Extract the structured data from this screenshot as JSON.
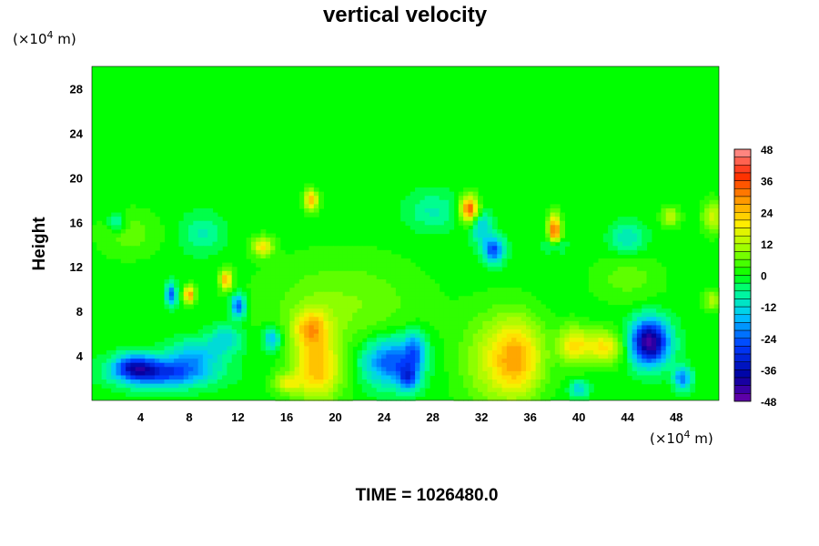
{
  "chart_data": {
    "type": "heatmap",
    "title": "vertical velocity",
    "ylabel": "Height",
    "xlabel": "",
    "x_unit_prefix": "(×10",
    "x_unit_exp": "4",
    "x_unit_suffix": " m)",
    "y_unit_prefix": "(×10",
    "y_unit_exp": "4",
    "y_unit_suffix": " m)",
    "xlim": [
      0,
      51.5
    ],
    "ylim": [
      0,
      30
    ],
    "x_ticks": [
      "4",
      "8",
      "12",
      "16",
      "20",
      "24",
      "28",
      "32",
      "36",
      "40",
      "44",
      "48"
    ],
    "x_tick_values": [
      4,
      8,
      12,
      16,
      20,
      24,
      28,
      32,
      36,
      40,
      44,
      48
    ],
    "y_ticks": [
      "4",
      "8",
      "12",
      "16",
      "20",
      "24",
      "28"
    ],
    "y_tick_values": [
      4,
      8,
      12,
      16,
      20,
      24,
      28
    ],
    "colorbar": {
      "ticks": [
        "48",
        "36",
        "24",
        "12",
        "0",
        "-12",
        "-24",
        "-36",
        "-48"
      ],
      "tick_values": [
        48,
        36,
        24,
        12,
        0,
        -12,
        -24,
        -36,
        -48
      ],
      "range": [
        -48,
        48
      ],
      "levels": 32
    },
    "background_value": 0,
    "features": [
      {
        "x": 18.5,
        "y": 2.8,
        "sx": 1.4,
        "sy": 2.0,
        "v": 24
      },
      {
        "x": 18.0,
        "y": 6.5,
        "sx": 1.0,
        "sy": 1.2,
        "v": 20
      },
      {
        "x": 16.0,
        "y": 1.5,
        "sx": 0.8,
        "sy": 0.6,
        "v": 14
      },
      {
        "x": 35.0,
        "y": 3.8,
        "sx": 1.5,
        "sy": 2.5,
        "v": 24
      },
      {
        "x": 32.5,
        "y": 3.5,
        "sx": 1.8,
        "sy": 3.0,
        "v": 10
      },
      {
        "x": 39.5,
        "y": 5.0,
        "sx": 0.9,
        "sy": 1.2,
        "v": 18
      },
      {
        "x": 42.0,
        "y": 4.8,
        "sx": 1.2,
        "sy": 1.0,
        "v": 20
      },
      {
        "x": 31.0,
        "y": 17.2,
        "sx": 0.5,
        "sy": 0.8,
        "v": 36
      },
      {
        "x": 38.0,
        "y": 15.2,
        "sx": 0.35,
        "sy": 1.0,
        "v": 36
      },
      {
        "x": 18.0,
        "y": 18.0,
        "sx": 0.4,
        "sy": 0.6,
        "v": 26
      },
      {
        "x": 14.0,
        "y": 13.8,
        "sx": 0.6,
        "sy": 0.6,
        "v": 20
      },
      {
        "x": 8.0,
        "y": 9.5,
        "sx": 0.3,
        "sy": 0.5,
        "v": 30
      },
      {
        "x": 11.0,
        "y": 10.8,
        "sx": 0.35,
        "sy": 0.6,
        "v": 26
      },
      {
        "x": 20.5,
        "y": 8.5,
        "sx": 4.5,
        "sy": 3.0,
        "v": 8
      },
      {
        "x": 47.5,
        "y": 16.5,
        "sx": 0.5,
        "sy": 0.6,
        "v": 14
      },
      {
        "x": 51.0,
        "y": 16.5,
        "sx": 0.6,
        "sy": 1.0,
        "v": 14
      },
      {
        "x": 51.0,
        "y": 9.0,
        "sx": 0.5,
        "sy": 0.6,
        "v": 12
      },
      {
        "x": 6.0,
        "y": 2.5,
        "sx": 2.6,
        "sy": 0.9,
        "v": -28
      },
      {
        "x": 3.5,
        "y": 3.0,
        "sx": 1.2,
        "sy": 0.8,
        "v": -24
      },
      {
        "x": 8.5,
        "y": 4.2,
        "sx": 1.5,
        "sy": 0.9,
        "v": -14
      },
      {
        "x": 11.0,
        "y": 5.5,
        "sx": 1.0,
        "sy": 0.9,
        "v": -12
      },
      {
        "x": 24.5,
        "y": 3.5,
        "sx": 1.6,
        "sy": 1.5,
        "v": -26
      },
      {
        "x": 26.5,
        "y": 4.5,
        "sx": 0.6,
        "sy": 1.2,
        "v": -18
      },
      {
        "x": 45.8,
        "y": 5.2,
        "sx": 1.1,
        "sy": 1.4,
        "v": -46
      },
      {
        "x": 48.5,
        "y": 2.0,
        "sx": 0.5,
        "sy": 0.7,
        "v": -22
      },
      {
        "x": 33.0,
        "y": 13.5,
        "sx": 0.6,
        "sy": 0.8,
        "v": -26
      },
      {
        "x": 26.0,
        "y": 2.0,
        "sx": 0.6,
        "sy": 0.8,
        "v": -20
      },
      {
        "x": 14.8,
        "y": 5.5,
        "sx": 0.5,
        "sy": 0.8,
        "v": -18
      },
      {
        "x": 12.0,
        "y": 8.5,
        "sx": 0.4,
        "sy": 0.7,
        "v": -26
      },
      {
        "x": 6.5,
        "y": 9.5,
        "sx": 0.3,
        "sy": 0.7,
        "v": -24
      },
      {
        "x": 40.0,
        "y": 1.0,
        "sx": 0.5,
        "sy": 0.5,
        "v": -14
      },
      {
        "x": 38.0,
        "y": 14.0,
        "sx": 0.5,
        "sy": 0.5,
        "v": -16
      },
      {
        "x": 32.0,
        "y": 15.5,
        "sx": 0.6,
        "sy": 1.0,
        "v": -14
      },
      {
        "x": 44.0,
        "y": 14.5,
        "sx": 1.0,
        "sy": 1.0,
        "v": -10
      },
      {
        "x": 2.0,
        "y": 16.0,
        "sx": 0.5,
        "sy": 0.6,
        "v": -12
      },
      {
        "x": 9.0,
        "y": 15.0,
        "sx": 1.2,
        "sy": 1.2,
        "v": -8
      },
      {
        "x": 28.0,
        "y": 17.0,
        "sx": 1.5,
        "sy": 1.2,
        "v": -8
      },
      {
        "x": 3.0,
        "y": 15.0,
        "sx": 1.8,
        "sy": 1.5,
        "v": 6
      },
      {
        "x": 44.0,
        "y": 11.0,
        "sx": 2.0,
        "sy": 1.5,
        "v": 6
      }
    ]
  },
  "footer": {
    "time_label": "TIME = 1026480.0"
  }
}
